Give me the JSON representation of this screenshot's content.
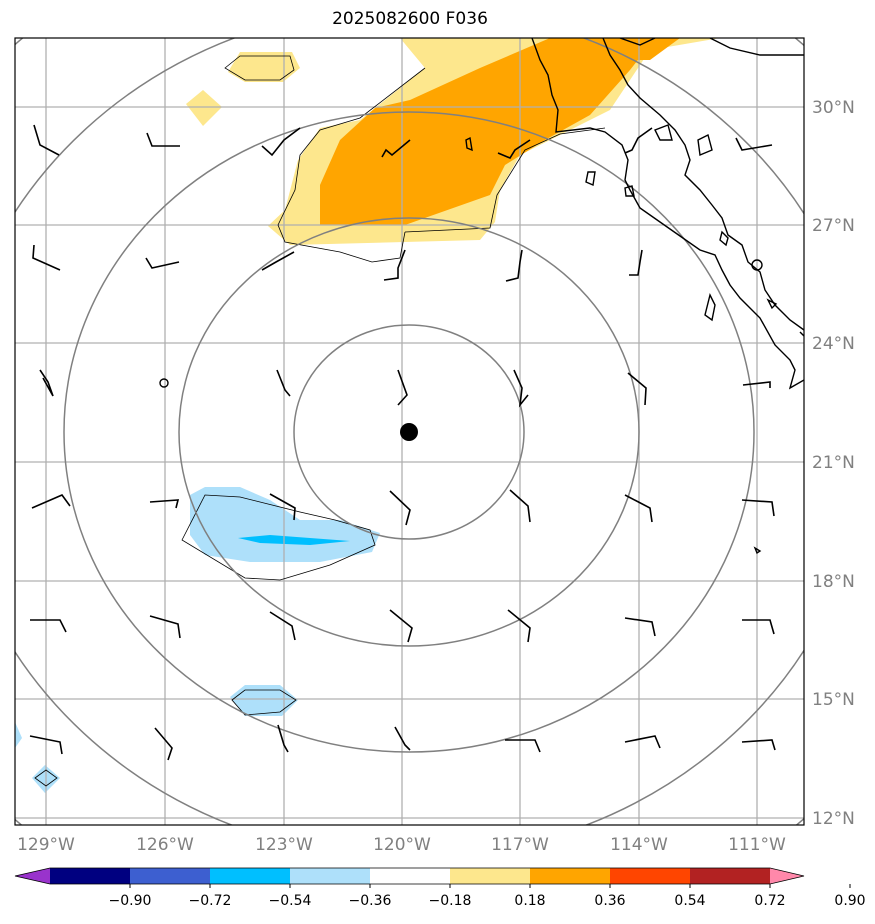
{
  "title": "2025082600 F036",
  "lat_labels": [
    "30°N",
    "27°N",
    "24°N",
    "21°N",
    "18°N",
    "15°N",
    "12°N"
  ],
  "lon_labels": [
    "129°W",
    "126°W",
    "123°W",
    "120°W",
    "117°W",
    "114°W",
    "111°W"
  ],
  "colorbar": {
    "labels": [
      "−0.90",
      "−0.72",
      "−0.54",
      "−0.36",
      "−0.18",
      "0.18",
      "0.36",
      "0.54",
      "0.72",
      "0.90"
    ],
    "colors": [
      "#9933cc",
      "#000080",
      "#3d5fd0",
      "#00bfff",
      "#aee0fa",
      "#ffffff",
      "#fde78d",
      "#ffa500",
      "#ff4500",
      "#b22222",
      "#ff88aa"
    ]
  },
  "fill_colors": {
    "light_yellow": "#fde78d",
    "orange": "#ffa500",
    "light_blue": "#aee0fa",
    "blue": "#00bfff"
  },
  "storm_center": {
    "lat": 21.7,
    "lon": -119.9
  }
}
